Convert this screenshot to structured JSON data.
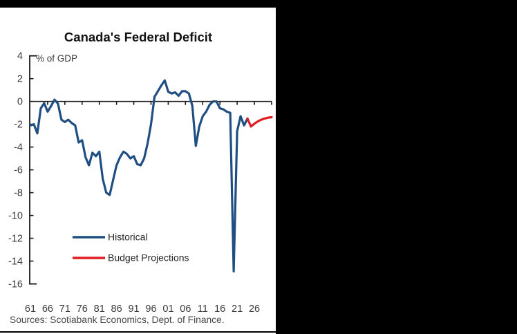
{
  "sources": "Sources: Scotiabank Economics, Dept. of Finance.",
  "colors": {
    "background": "#000000",
    "panel": "#ffffff",
    "axis": "#1a1a1a",
    "historical": "#1f4e82",
    "projection": "#e11b22"
  },
  "chart_data": {
    "type": "line",
    "title": "Canada's Federal Deficit",
    "unit": "% of GDP",
    "xlabel": "",
    "ylabel": "% of GDP",
    "ylim": [
      -16,
      4
    ],
    "grid": false,
    "legend_position": "inside-center-left",
    "y_ticks": [
      4,
      2,
      0,
      -2,
      -4,
      -6,
      -8,
      -10,
      -12,
      -14,
      -16
    ],
    "x_tick_labels": [
      "61",
      "66",
      "71",
      "76",
      "81",
      "86",
      "91",
      "96",
      "01",
      "06",
      "11",
      "16",
      "21",
      "26"
    ],
    "x_tick_start_year": 1961,
    "x_tick_step_years": 5,
    "series": [
      {
        "name": "Historical",
        "color": "#1f4e82",
        "start_year": 1961,
        "end_year": 2024,
        "values": [
          -2.1,
          -2.0,
          -2.8,
          -0.6,
          -0.15,
          -0.9,
          -0.4,
          0.15,
          -0.2,
          -1.6,
          -1.8,
          -1.6,
          -1.9,
          -2.1,
          -3.6,
          -3.4,
          -4.9,
          -5.6,
          -4.5,
          -4.8,
          -4.4,
          -6.8,
          -8.0,
          -8.2,
          -6.9,
          -5.6,
          -4.9,
          -4.4,
          -4.6,
          -5.0,
          -4.8,
          -5.5,
          -5.6,
          -5.0,
          -3.7,
          -2.0,
          0.4,
          0.9,
          1.4,
          1.85,
          0.85,
          0.7,
          0.8,
          0.5,
          0.9,
          0.9,
          0.7,
          -0.4,
          -3.9,
          -2.2,
          -1.3,
          -0.9,
          -0.3,
          0.0,
          0.0,
          -0.6,
          -0.7,
          -0.9,
          -1.0,
          -14.9,
          -2.6,
          -1.3,
          -2.1,
          -1.5
        ]
      },
      {
        "name": "Budget Projections",
        "color": "#e11b22",
        "start_year": 2024,
        "end_year": 2031,
        "values": [
          -1.5,
          -2.2,
          -1.95,
          -1.75,
          -1.6,
          -1.5,
          -1.42,
          -1.38
        ]
      }
    ]
  }
}
